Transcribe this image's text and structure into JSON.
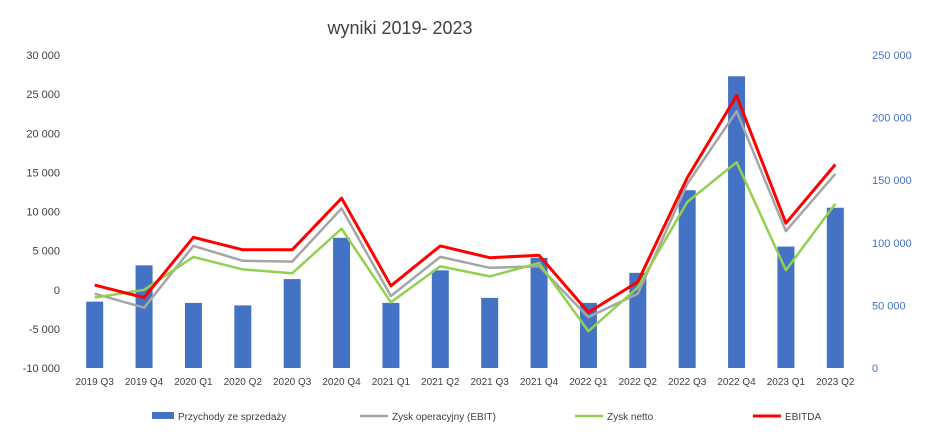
{
  "chart_data": {
    "type": "bar",
    "title": "wyniki 2019- 2023",
    "categories": [
      "2019 Q3",
      "2019 Q4",
      "2020 Q1",
      "2020 Q2",
      "2020 Q3",
      "2020 Q4",
      "2021 Q1",
      "2021 Q2",
      "2021 Q3",
      "2021 Q4",
      "2022 Q1",
      "2022 Q2",
      "2022 Q3",
      "2022 Q4",
      "2023 Q1",
      "2023 Q2"
    ],
    "y_left": {
      "min": -10000,
      "max": 30000,
      "ticks": [
        "-10 000",
        "-5 000",
        "0",
        "5 000",
        "10 000",
        "15 000",
        "20 000",
        "25 000",
        "30 000"
      ]
    },
    "y_right": {
      "min": 0,
      "max": 250000,
      "ticks": [
        "0",
        "50 000",
        "100 000",
        "150 000",
        "200 000",
        "250 000"
      ]
    },
    "series": [
      {
        "name": "Przychody ze sprzedaży",
        "type": "bar",
        "axis": "right",
        "color": "#4472C4",
        "values": [
          53000,
          82000,
          52000,
          50000,
          71000,
          104000,
          52000,
          78000,
          56000,
          88000,
          52000,
          76000,
          142000,
          233000,
          97000,
          128000
        ]
      },
      {
        "name": "Zysk operacyjny (EBIT)",
        "type": "line",
        "axis": "left",
        "color": "#A5A5A5",
        "values": [
          -500,
          -2300,
          5600,
          3700,
          3600,
          10400,
          -800,
          4200,
          2800,
          3000,
          -3500,
          -500,
          13500,
          22800,
          7500,
          14800
        ]
      },
      {
        "name": "Zysk netto",
        "type": "line",
        "axis": "left",
        "color": "#92D050",
        "values": [
          -1000,
          0,
          4200,
          2600,
          2100,
          7800,
          -1600,
          3000,
          1700,
          3400,
          -5300,
          300,
          11200,
          16300,
          2500,
          11000
        ]
      },
      {
        "name": "EBITDA",
        "type": "line",
        "axis": "left",
        "color": "#FF0000",
        "values": [
          600,
          -1000,
          6700,
          5100,
          5100,
          11700,
          500,
          5600,
          4100,
          4400,
          -2900,
          1000,
          14300,
          24800,
          8500,
          16000
        ]
      }
    ],
    "legend_position": "bottom",
    "grid": false
  }
}
